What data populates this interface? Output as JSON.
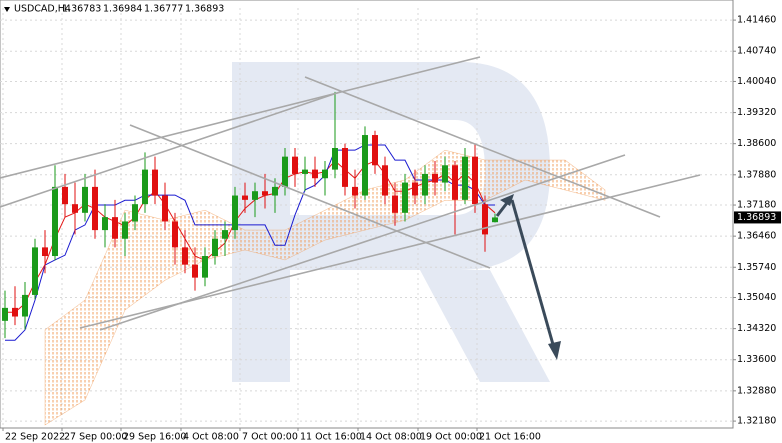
{
  "chart_data": {
    "type": "candlestick",
    "title": "USDCAD,H4",
    "x": [
      0,
      1,
      2,
      3,
      4,
      5,
      6,
      7,
      8,
      9,
      10,
      11,
      12,
      13,
      14,
      15,
      16,
      17,
      18,
      19,
      20,
      21,
      22,
      23,
      24,
      25,
      26,
      27,
      28,
      29,
      30,
      31,
      32,
      33,
      34,
      35,
      36,
      37,
      38,
      39,
      40,
      41,
      42,
      43,
      44,
      45,
      46,
      47,
      48,
      49
    ],
    "open": [
      1.345,
      1.348,
      1.346,
      1.351,
      1.362,
      1.36,
      1.376,
      1.372,
      1.37,
      1.376,
      1.366,
      1.369,
      1.364,
      1.368,
      1.372,
      1.38,
      1.374,
      1.368,
      1.362,
      1.358,
      1.355,
      1.36,
      1.364,
      1.366,
      1.374,
      1.373,
      1.375,
      1.374,
      1.376,
      1.383,
      1.379,
      1.38,
      1.378,
      1.38,
      1.385,
      1.376,
      1.374,
      1.388,
      1.381,
      1.374,
      1.37,
      1.377,
      1.374,
      1.379,
      1.377,
      1.381,
      1.373,
      1.383,
      1.372,
      1.36783
    ],
    "high": [
      1.352,
      1.353,
      1.354,
      1.364,
      1.366,
      1.381,
      1.379,
      1.377,
      1.379,
      1.38,
      1.372,
      1.373,
      1.37,
      1.374,
      1.384,
      1.383,
      1.377,
      1.37,
      1.366,
      1.362,
      1.362,
      1.366,
      1.368,
      1.376,
      1.377,
      1.377,
      1.379,
      1.378,
      1.385,
      1.385,
      1.383,
      1.383,
      1.382,
      1.398,
      1.386,
      1.38,
      1.39,
      1.389,
      1.383,
      1.377,
      1.379,
      1.38,
      1.381,
      1.382,
      1.383,
      1.382,
      1.385,
      1.386,
      1.374,
      1.36984
    ],
    "low": [
      1.341,
      1.344,
      1.343,
      1.35,
      1.356,
      1.359,
      1.369,
      1.365,
      1.368,
      1.364,
      1.362,
      1.362,
      1.36,
      1.366,
      1.37,
      1.372,
      1.366,
      1.358,
      1.356,
      1.352,
      1.353,
      1.358,
      1.36,
      1.364,
      1.37,
      1.369,
      1.371,
      1.37,
      1.374,
      1.376,
      1.375,
      1.376,
      1.374,
      1.378,
      1.374,
      1.371,
      1.373,
      1.379,
      1.372,
      1.367,
      1.368,
      1.372,
      1.372,
      1.374,
      1.375,
      1.365,
      1.372,
      1.37,
      1.361,
      1.36777
    ],
    "close": [
      1.348,
      1.346,
      1.351,
      1.362,
      1.36,
      1.376,
      1.372,
      1.37,
      1.376,
      1.366,
      1.369,
      1.364,
      1.368,
      1.372,
      1.38,
      1.374,
      1.368,
      1.362,
      1.358,
      1.355,
      1.36,
      1.364,
      1.366,
      1.374,
      1.373,
      1.375,
      1.374,
      1.376,
      1.383,
      1.379,
      1.38,
      1.378,
      1.38,
      1.385,
      1.376,
      1.374,
      1.388,
      1.381,
      1.374,
      1.37,
      1.377,
      1.374,
      1.379,
      1.377,
      1.381,
      1.373,
      1.383,
      1.372,
      1.365,
      1.36893
    ],
    "up_color": "#1a9a1a",
    "down_color": "#e01010",
    "series": [
      {
        "color": "#e31a1a",
        "values": [
          1.347,
          1.347,
          1.349,
          1.354,
          1.358,
          1.364,
          1.369,
          1.37,
          1.372,
          1.371,
          1.369,
          1.368,
          1.367,
          1.369,
          1.373,
          1.375,
          1.372,
          1.368,
          1.364,
          1.36,
          1.359,
          1.361,
          1.363,
          1.368,
          1.371,
          1.373,
          1.374,
          1.3745,
          1.378,
          1.379,
          1.3795,
          1.379,
          1.3795,
          1.382,
          1.38,
          1.378,
          1.381,
          1.382,
          1.379,
          1.375,
          1.375,
          1.376,
          1.377,
          1.3775,
          1.379,
          1.377,
          1.379,
          1.377,
          1.372,
          1.37
        ]
      },
      {
        "color": "#1a1ad0",
        "values": [
          1.3405,
          1.3405,
          1.3429,
          1.3498,
          1.3579,
          1.3591,
          1.3602,
          1.366,
          1.3672,
          1.3718,
          1.3718,
          1.3718,
          1.3729,
          1.3729,
          1.3741,
          1.3741,
          1.3741,
          1.3741,
          1.3729,
          1.3672,
          1.3672,
          1.3672,
          1.3672,
          1.3672,
          1.3672,
          1.3672,
          1.3672,
          1.3625,
          1.3625,
          1.3695,
          1.3753,
          1.3764,
          1.3787,
          1.3845,
          1.3845,
          1.3845,
          1.3857,
          1.3857,
          1.3857,
          1.3822,
          1.3822,
          1.3776,
          1.3776,
          1.3776,
          1.3776,
          1.3764,
          1.3764,
          1.3753,
          1.3718,
          1.3718
        ]
      }
    ],
    "cloud": {
      "color": "#f0a060",
      "x": [
        4,
        8,
        12,
        16,
        20,
        24,
        28,
        32,
        36,
        40,
        44,
        48,
        52,
        56,
        60
      ],
      "span_a": [
        1.3429,
        1.3498,
        1.3706,
        1.3683,
        1.3706,
        1.366,
        1.366,
        1.3706,
        1.3753,
        1.3776,
        1.3845,
        1.3822,
        1.3822,
        1.3822,
        1.3753
      ],
      "span_b": [
        1.3209,
        1.3267,
        1.3475,
        1.3544,
        1.3591,
        1.3614,
        1.3591,
        1.3637,
        1.366,
        1.3683,
        1.3729,
        1.3729,
        1.3776,
        1.3753,
        1.3729
      ]
    },
    "xlim": [
      -0.5,
      72.8
    ],
    "ylim": [
      1.3202,
      1.4174
    ],
    "xticks": [
      {
        "value": -0.2,
        "label": "22 Sep 2022"
      },
      {
        "value": 5.7,
        "label": "27 Sep 00:00"
      },
      {
        "value": 11.6,
        "label": "29 Sep 16:00"
      },
      {
        "value": 17.6,
        "label": "4 Oct 08:00"
      },
      {
        "value": 23.5,
        "label": "7 Oct 00:00"
      },
      {
        "value": 29.3,
        "label": "11 Oct 16:00"
      },
      {
        "value": 35.3,
        "label": "14 Oct 08:00"
      },
      {
        "value": 41.3,
        "label": "19 Oct 00:00"
      },
      {
        "value": 47.2,
        "label": "21 Oct 16:00"
      }
    ],
    "yticks": [
      {
        "value": 1.4146,
        "label": "1.41460"
      },
      {
        "value": 1.4074,
        "label": "1.40740"
      },
      {
        "value": 1.4004,
        "label": "1.40040"
      },
      {
        "value": 1.3932,
        "label": "1.39320"
      },
      {
        "value": 1.386,
        "label": "1.38600"
      },
      {
        "value": 1.3788,
        "label": "1.37880"
      },
      {
        "value": 1.3718,
        "label": "1.37180"
      },
      {
        "value": 1.3646,
        "label": "1.36460"
      },
      {
        "value": 1.3574,
        "label": "1.35740"
      },
      {
        "value": 1.3504,
        "label": "1.35040"
      },
      {
        "value": 1.3432,
        "label": "1.34320"
      },
      {
        "value": 1.336,
        "label": "1.33600"
      },
      {
        "value": 1.3288,
        "label": "1.32880"
      },
      {
        "value": 1.3218,
        "label": "1.32180"
      }
    ],
    "grid": true
  }
}
